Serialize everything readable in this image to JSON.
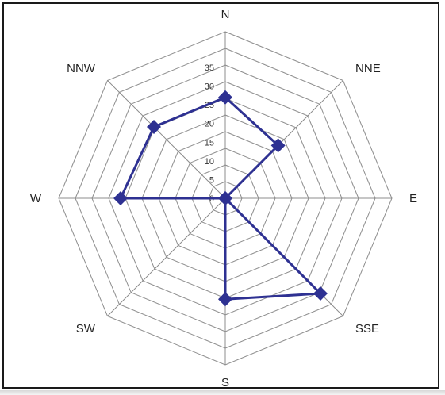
{
  "chart_data": {
    "type": "radar",
    "categories": [
      "N",
      "NNE",
      "E",
      "SSE",
      "S",
      "SW",
      "W",
      "NNW"
    ],
    "series": [
      {
        "values": [
          27,
          20,
          0,
          36,
          27,
          0,
          28,
          27
        ]
      }
    ],
    "rlim": [
      0,
      35
    ],
    "ticks": [
      "0",
      "5",
      "10",
      "15",
      "20",
      "25",
      "30",
      "35"
    ],
    "ring_count": 10,
    "grid": true,
    "legend": "none",
    "colors": {
      "series": "#2e3192",
      "grid": "#8c8c8c",
      "frame": "#1a1a1a"
    }
  }
}
